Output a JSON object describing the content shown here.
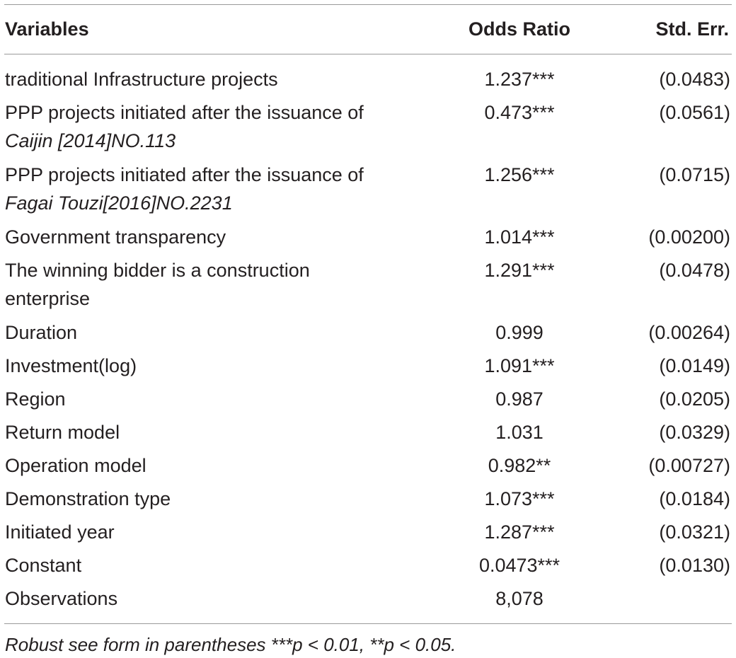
{
  "table": {
    "headers": {
      "variables": "Variables",
      "odds_ratio": "Odds Ratio",
      "std_err": "Std. Err."
    },
    "rows": [
      {
        "variable": "traditional Infrastructure projects",
        "variable_line2": "",
        "odds_ratio": "1.237***",
        "std_err": "(0.0483)"
      },
      {
        "variable": "PPP projects initiated after the issuance of",
        "variable_line2": "Caijin [2014]NO.113",
        "odds_ratio": "0.473***",
        "std_err": "(0.0561)"
      },
      {
        "variable": "PPP projects initiated after the issuance of",
        "variable_line2": "Fagai Touzi[2016]NO.2231",
        "odds_ratio": "1.256***",
        "std_err": "(0.0715)"
      },
      {
        "variable": "Government transparency",
        "variable_line2": "",
        "odds_ratio": "1.014***",
        "std_err": "(0.00200)"
      },
      {
        "variable": "The winning bidder is a construction",
        "variable_line2": "enterprise",
        "odds_ratio": "1.291***",
        "std_err": "(0.0478)"
      },
      {
        "variable": "Duration",
        "variable_line2": "",
        "odds_ratio": "0.999",
        "std_err": "(0.00264)"
      },
      {
        "variable": "Investment(log)",
        "variable_line2": "",
        "odds_ratio": "1.091***",
        "std_err": "(0.0149)"
      },
      {
        "variable": "Region",
        "variable_line2": "",
        "odds_ratio": "0.987",
        "std_err": "(0.0205)"
      },
      {
        "variable": "Return model",
        "variable_line2": "",
        "odds_ratio": "1.031",
        "std_err": "(0.0329)"
      },
      {
        "variable": "Operation model",
        "variable_line2": "",
        "odds_ratio": "0.982**",
        "std_err": "(0.00727)"
      },
      {
        "variable": "Demonstration type",
        "variable_line2": "",
        "odds_ratio": "1.073***",
        "std_err": "(0.0184)"
      },
      {
        "variable": "Initiated year",
        "variable_line2": "",
        "odds_ratio": "1.287***",
        "std_err": "(0.0321)"
      },
      {
        "variable": "Constant",
        "variable_line2": "",
        "odds_ratio": "0.0473***",
        "std_err": "(0.0130)"
      },
      {
        "variable": "Observations",
        "variable_line2": "",
        "odds_ratio": "8,078",
        "std_err": ""
      }
    ],
    "footnote": "Robust see form in parentheses ***p < 0.01, **p < 0.05."
  }
}
